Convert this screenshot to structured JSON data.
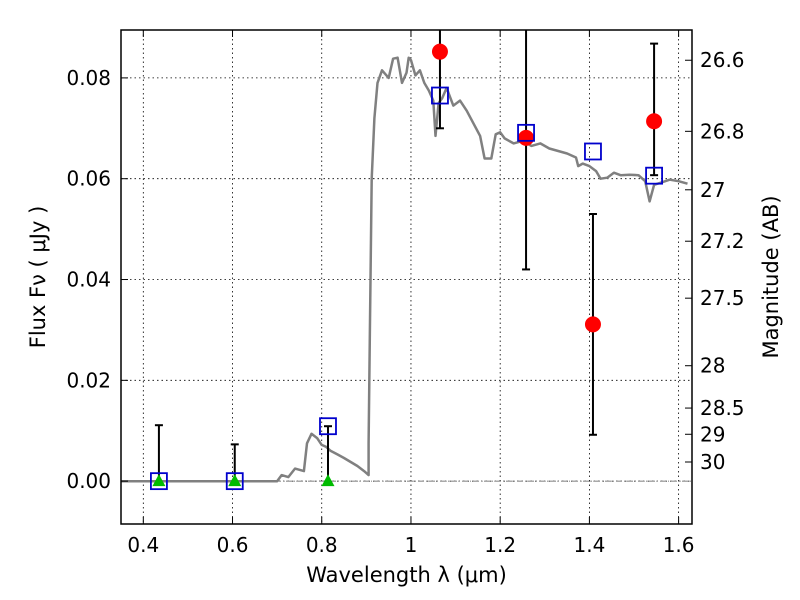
{
  "chart_data": {
    "type": "scatter",
    "xlabel": "Wavelength  λ (μm)",
    "ylabel": "Flux  Fν  ( μJy )",
    "y2label": "Magnitude (AB)",
    "xlim": [
      0.35,
      1.63
    ],
    "ylim": [
      -0.0085,
      0.0895
    ],
    "x_ticks": [
      0.4,
      0.6,
      0.8,
      1.0,
      1.2,
      1.4,
      1.6
    ],
    "x_tick_labels": [
      "0.4",
      "0.6",
      "0.8",
      "1",
      "1.2",
      "1.4",
      "1.6"
    ],
    "y_ticks": [
      0.0,
      0.02,
      0.04,
      0.06,
      0.08
    ],
    "y_tick_labels": [
      "0.00",
      "0.02",
      "0.04",
      "0.06",
      "0.08"
    ],
    "mag_ticks": [
      {
        "label": "26.6",
        "flux": 0.0835
      },
      {
        "label": "26.8",
        "flux": 0.0694
      },
      {
        "label": "27",
        "flux": 0.0578
      },
      {
        "label": "27.2",
        "flux": 0.0476
      },
      {
        "label": "27.5",
        "flux": 0.0363
      },
      {
        "label": "28",
        "flux": 0.0229
      },
      {
        "label": "28.5",
        "flux": 0.0145
      },
      {
        "label": "29",
        "flux": 0.0093
      },
      {
        "label": "30",
        "flux": 0.0038
      }
    ],
    "grid": true,
    "colors": {
      "model": "#808080",
      "red": "#ff0000",
      "blue": "#0000cc",
      "green": "#00bb00",
      "errorbar": "#000000"
    },
    "series": [
      {
        "marker": "circle",
        "color": "#ff0000",
        "points": [
          {
            "x": 1.065,
            "y": 0.0852,
            "yerr_low": 0.0152,
            "yerr_high": 0.01
          },
          {
            "x": 1.258,
            "y": 0.0681,
            "yerr_low": 0.0261,
            "yerr_high": 0.025
          },
          {
            "x": 1.408,
            "y": 0.0311,
            "yerr_low": 0.0219,
            "yerr_high": 0.0219
          },
          {
            "x": 1.545,
            "y": 0.0714,
            "yerr_low": 0.0107,
            "yerr_high": 0.0154
          }
        ]
      },
      {
        "marker": "triangle",
        "color": "#00bb00",
        "points": [
          {
            "x": 0.435,
            "y": 0.0,
            "yerr_low": 0.0,
            "yerr_high": 0.0111
          },
          {
            "x": 0.605,
            "y": 0.0,
            "yerr_low": 0.0,
            "yerr_high": 0.0073
          },
          {
            "x": 0.814,
            "y": 0.0,
            "yerr_low": 0.0,
            "yerr_high": 0.0109
          }
        ]
      },
      {
        "marker": "square",
        "color": "#0000cc",
        "points": [
          {
            "x": 0.435,
            "y": 0.0
          },
          {
            "x": 0.605,
            "y": 0.0
          },
          {
            "x": 0.814,
            "y": 0.0109
          },
          {
            "x": 1.065,
            "y": 0.0765
          },
          {
            "x": 1.258,
            "y": 0.0691
          },
          {
            "x": 1.408,
            "y": 0.0654
          },
          {
            "x": 1.545,
            "y": 0.0606
          }
        ]
      },
      {
        "marker": "line",
        "color": "#808080",
        "points": [
          [
            0.35,
            0.0
          ],
          [
            0.7,
            0.0
          ],
          [
            0.71,
            0.0012
          ],
          [
            0.725,
            0.0008
          ],
          [
            0.74,
            0.0025
          ],
          [
            0.76,
            0.002
          ],
          [
            0.767,
            0.0075
          ],
          [
            0.777,
            0.0094
          ],
          [
            0.79,
            0.0085
          ],
          [
            0.8,
            0.0072
          ],
          [
            0.81,
            0.0068
          ],
          [
            0.82,
            0.006
          ],
          [
            0.835,
            0.0053
          ],
          [
            0.85,
            0.0046
          ],
          [
            0.865,
            0.0038
          ],
          [
            0.88,
            0.003
          ],
          [
            0.895,
            0.002
          ],
          [
            0.905,
            0.0012
          ],
          [
            0.905,
            0.0075
          ],
          [
            0.908,
            0.03
          ],
          [
            0.912,
            0.06
          ],
          [
            0.918,
            0.072
          ],
          [
            0.925,
            0.079
          ],
          [
            0.935,
            0.0815
          ],
          [
            0.95,
            0.08
          ],
          [
            0.96,
            0.0838
          ],
          [
            0.97,
            0.084
          ],
          [
            0.98,
            0.079
          ],
          [
            0.99,
            0.081
          ],
          [
            0.995,
            0.084
          ],
          [
            1.0,
            0.0835
          ],
          [
            1.01,
            0.0805
          ],
          [
            1.02,
            0.0815
          ],
          [
            1.03,
            0.079
          ],
          [
            1.04,
            0.0775
          ],
          [
            1.05,
            0.0755
          ],
          [
            1.055,
            0.0685
          ],
          [
            1.062,
            0.075
          ],
          [
            1.07,
            0.076
          ],
          [
            1.08,
            0.078
          ],
          [
            1.095,
            0.0745
          ],
          [
            1.11,
            0.0755
          ],
          [
            1.125,
            0.0735
          ],
          [
            1.14,
            0.071
          ],
          [
            1.155,
            0.0685
          ],
          [
            1.165,
            0.064
          ],
          [
            1.18,
            0.064
          ],
          [
            1.19,
            0.0688
          ],
          [
            1.2,
            0.0692
          ],
          [
            1.21,
            0.068
          ],
          [
            1.23,
            0.067
          ],
          [
            1.25,
            0.0675
          ],
          [
            1.27,
            0.0665
          ],
          [
            1.29,
            0.067
          ],
          [
            1.31,
            0.066
          ],
          [
            1.33,
            0.0655
          ],
          [
            1.35,
            0.065
          ],
          [
            1.37,
            0.0642
          ],
          [
            1.375,
            0.0625
          ],
          [
            1.385,
            0.063
          ],
          [
            1.4,
            0.0625
          ],
          [
            1.415,
            0.0615
          ],
          [
            1.425,
            0.06
          ],
          [
            1.44,
            0.0602
          ],
          [
            1.455,
            0.0612
          ],
          [
            1.47,
            0.0607
          ],
          [
            1.49,
            0.0608
          ],
          [
            1.51,
            0.0607
          ],
          [
            1.525,
            0.0595
          ],
          [
            1.535,
            0.0555
          ],
          [
            1.545,
            0.0588
          ],
          [
            1.56,
            0.0592
          ],
          [
            1.58,
            0.0598
          ],
          [
            1.6,
            0.0595
          ],
          [
            1.62,
            0.059
          ]
        ]
      }
    ]
  }
}
